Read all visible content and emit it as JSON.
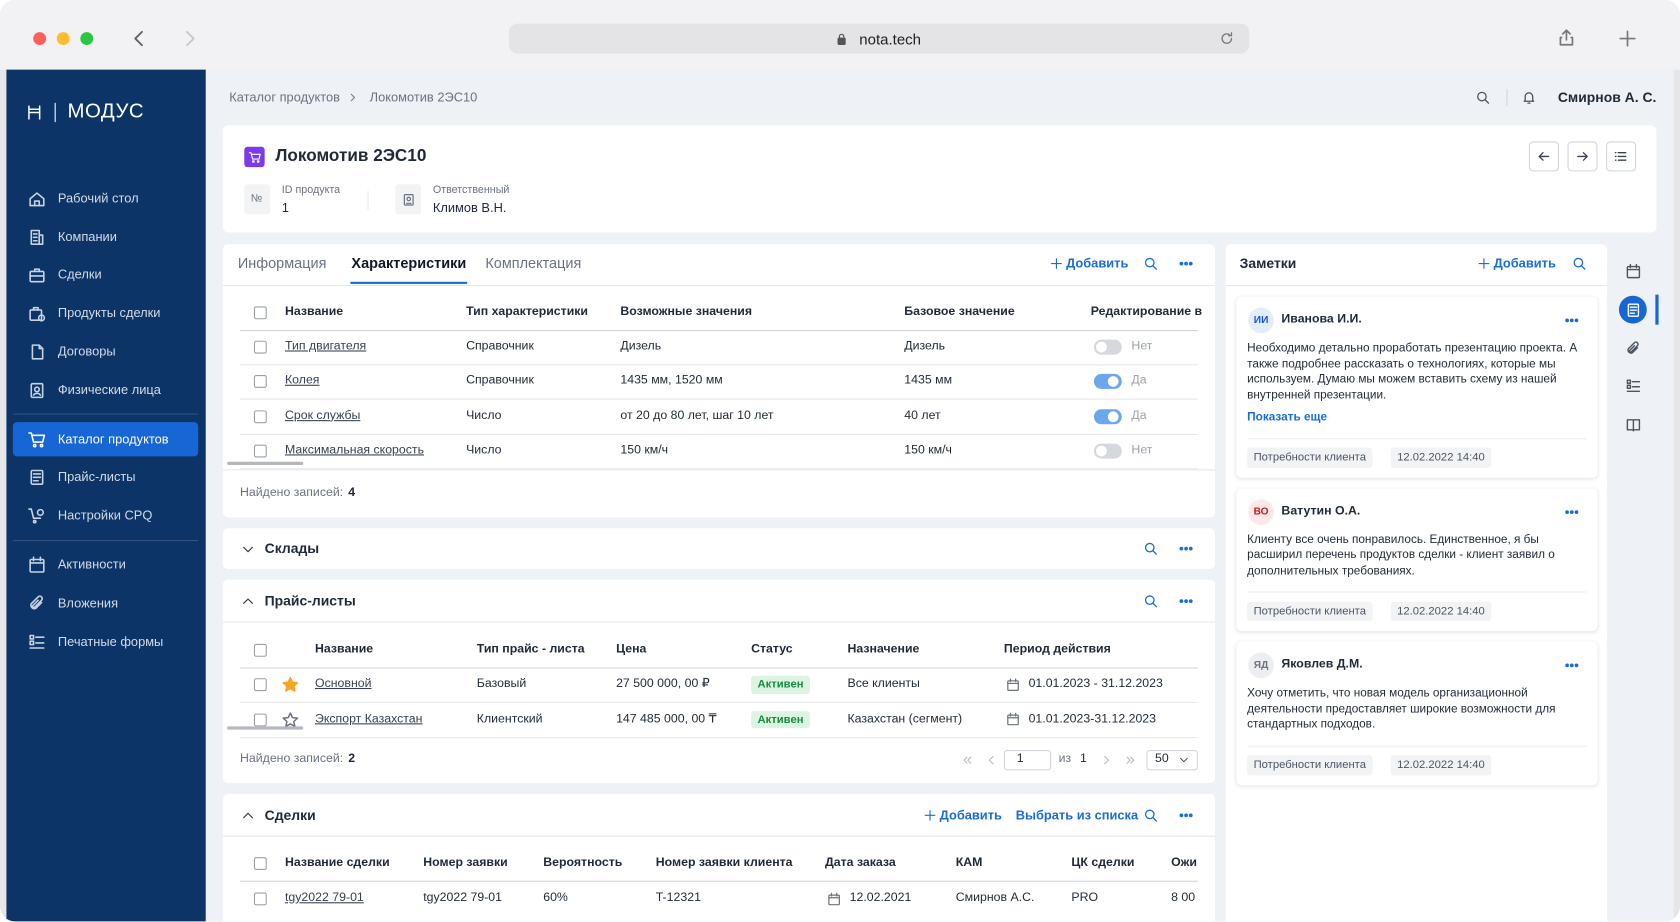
{
  "browser": {
    "url": "nota.tech"
  },
  "sidebar": {
    "logo": "МОДУС",
    "menu": [
      [
        {
          "label": "Рабочий стол"
        },
        {
          "label": "Компании"
        },
        {
          "label": "Сделки"
        },
        {
          "label": "Продукты сделки"
        },
        {
          "label": "Договоры"
        },
        {
          "label": "Физические лица"
        }
      ],
      [
        {
          "label": "Каталог продуктов",
          "active": true
        },
        {
          "label": "Прайс-листы"
        },
        {
          "label": "Настройки CPQ"
        }
      ],
      [
        {
          "label": "Активности"
        },
        {
          "label": "Вложения"
        },
        {
          "label": "Печатные формы"
        }
      ]
    ]
  },
  "header": {
    "breadcrumbs": [
      "Каталог продуктов",
      "Локомотив 2ЭС10"
    ],
    "user": "Смирнов А. С."
  },
  "product": {
    "title": "Локомотив 2ЭС10",
    "id_badge": "№",
    "fields": [
      {
        "label": "ID продукта",
        "value": "1"
      },
      {
        "label": "Ответственный",
        "value": "Климов В.Н."
      }
    ]
  },
  "characteristics": {
    "tabs": [
      {
        "label": "Информация"
      },
      {
        "label": "Характеристики",
        "active": true
      },
      {
        "label": "Комплектация"
      }
    ],
    "add": "Добавить",
    "columns": [
      "Название",
      "Тип характеристики",
      "Возможные значения",
      "Базовое значение",
      "Редактирование в"
    ],
    "rows": [
      {
        "name": "Тип двигателя",
        "type": "Справочник",
        "values": "Дизель",
        "base": "Дизель",
        "editable": false,
        "editable_label": "Нет"
      },
      {
        "name": "Колея",
        "type": "Справочник",
        "values": "1435 мм, 1520 мм",
        "base": "1435 мм",
        "editable": true,
        "editable_label": "Да"
      },
      {
        "name": "Срок службы",
        "type": "Число",
        "values": "от 20 до 80 лет, шаг 10 лет",
        "base": "40 лет",
        "editable": true,
        "editable_label": "Да"
      },
      {
        "name": "Максимальная скорость",
        "type": "Число",
        "values": "150 км/ч",
        "base": "150 км/ч",
        "editable": false,
        "editable_label": "Нет"
      }
    ],
    "found_label": "Найдено записей:",
    "found_count": 4
  },
  "warehouses": {
    "title": "Склады",
    "expanded": false
  },
  "pricelists": {
    "title": "Прайс-листы",
    "expanded": true,
    "columns": [
      "Название",
      "Тип прайс - листа",
      "Цена",
      "Статус",
      "Назначение",
      "Период действия"
    ],
    "rows": [
      {
        "favorite": true,
        "name": "Основной",
        "type": "Базовый",
        "price": "27 500 000, 00 ₽",
        "status": "Активен",
        "purpose": "Все клиенты",
        "period": "01.01.2023 - 31.12.2023"
      },
      {
        "favorite": false,
        "name": "Экспорт Казахстан",
        "type": "Клиентский",
        "price": "147 485 000, 00 ₸",
        "status": "Активен",
        "purpose": "Казахстан (сегмент)",
        "period": "01.01.2023-31.12.2023"
      }
    ],
    "found_label": "Найдено записей:",
    "found_count": 2,
    "pagination": {
      "page": 1,
      "of": "из",
      "pages": 1,
      "per_page": 50
    }
  },
  "deals": {
    "title": "Сделки",
    "expanded": true,
    "add": "Добавить",
    "select_from_list": "Выбрать из списка",
    "columns": [
      "Название сделки",
      "Номер заявки",
      "Вероятность",
      "Номер заявки клиента",
      "Дата заказа",
      "КАМ",
      "ЦК сделки",
      "Ожи"
    ],
    "rows": [
      {
        "name": "tgy2022 79-01",
        "number": "tgy2022 79-01",
        "probability": "60%",
        "client_number": "T-12321",
        "date": "12.02.2021",
        "kam": "Смирнов А.С.",
        "ck": "PRO",
        "expected": "8 00"
      }
    ]
  },
  "notes": {
    "title": "Заметки",
    "add": "Добавить",
    "items": [
      {
        "initials": "ИИ",
        "color": "blue",
        "author": "Иванова И.И.",
        "text": "Необходимо детально проработать презентацию проекта. А также подробнее рассказать о технологиях, которые мы используем. Думаю мы можем вставить схему из нашей внутренней презентации.",
        "more": "Показать еще",
        "tag": "Потребности клиента",
        "date": "12.02.2022 14:40"
      },
      {
        "initials": "ВО",
        "color": "red",
        "author": "Ватутин О.А.",
        "text": "Клиенту все очень понравилось. Единственное, я бы расширил перечень продуктов сделки - клиент заявил о дополнительных требованиях.",
        "tag": "Потребности клиента",
        "date": "12.02.2022 14:40"
      },
      {
        "initials": "ЯД",
        "color": "gray",
        "author": "Яковлев Д.М.",
        "text": "Хочу отметить, что новая модель организационной деятельности предоставляет широкие возможности для стандартных подходов.",
        "tag": "Потребности клиента",
        "date": "12.02.2022 14:40"
      }
    ]
  }
}
